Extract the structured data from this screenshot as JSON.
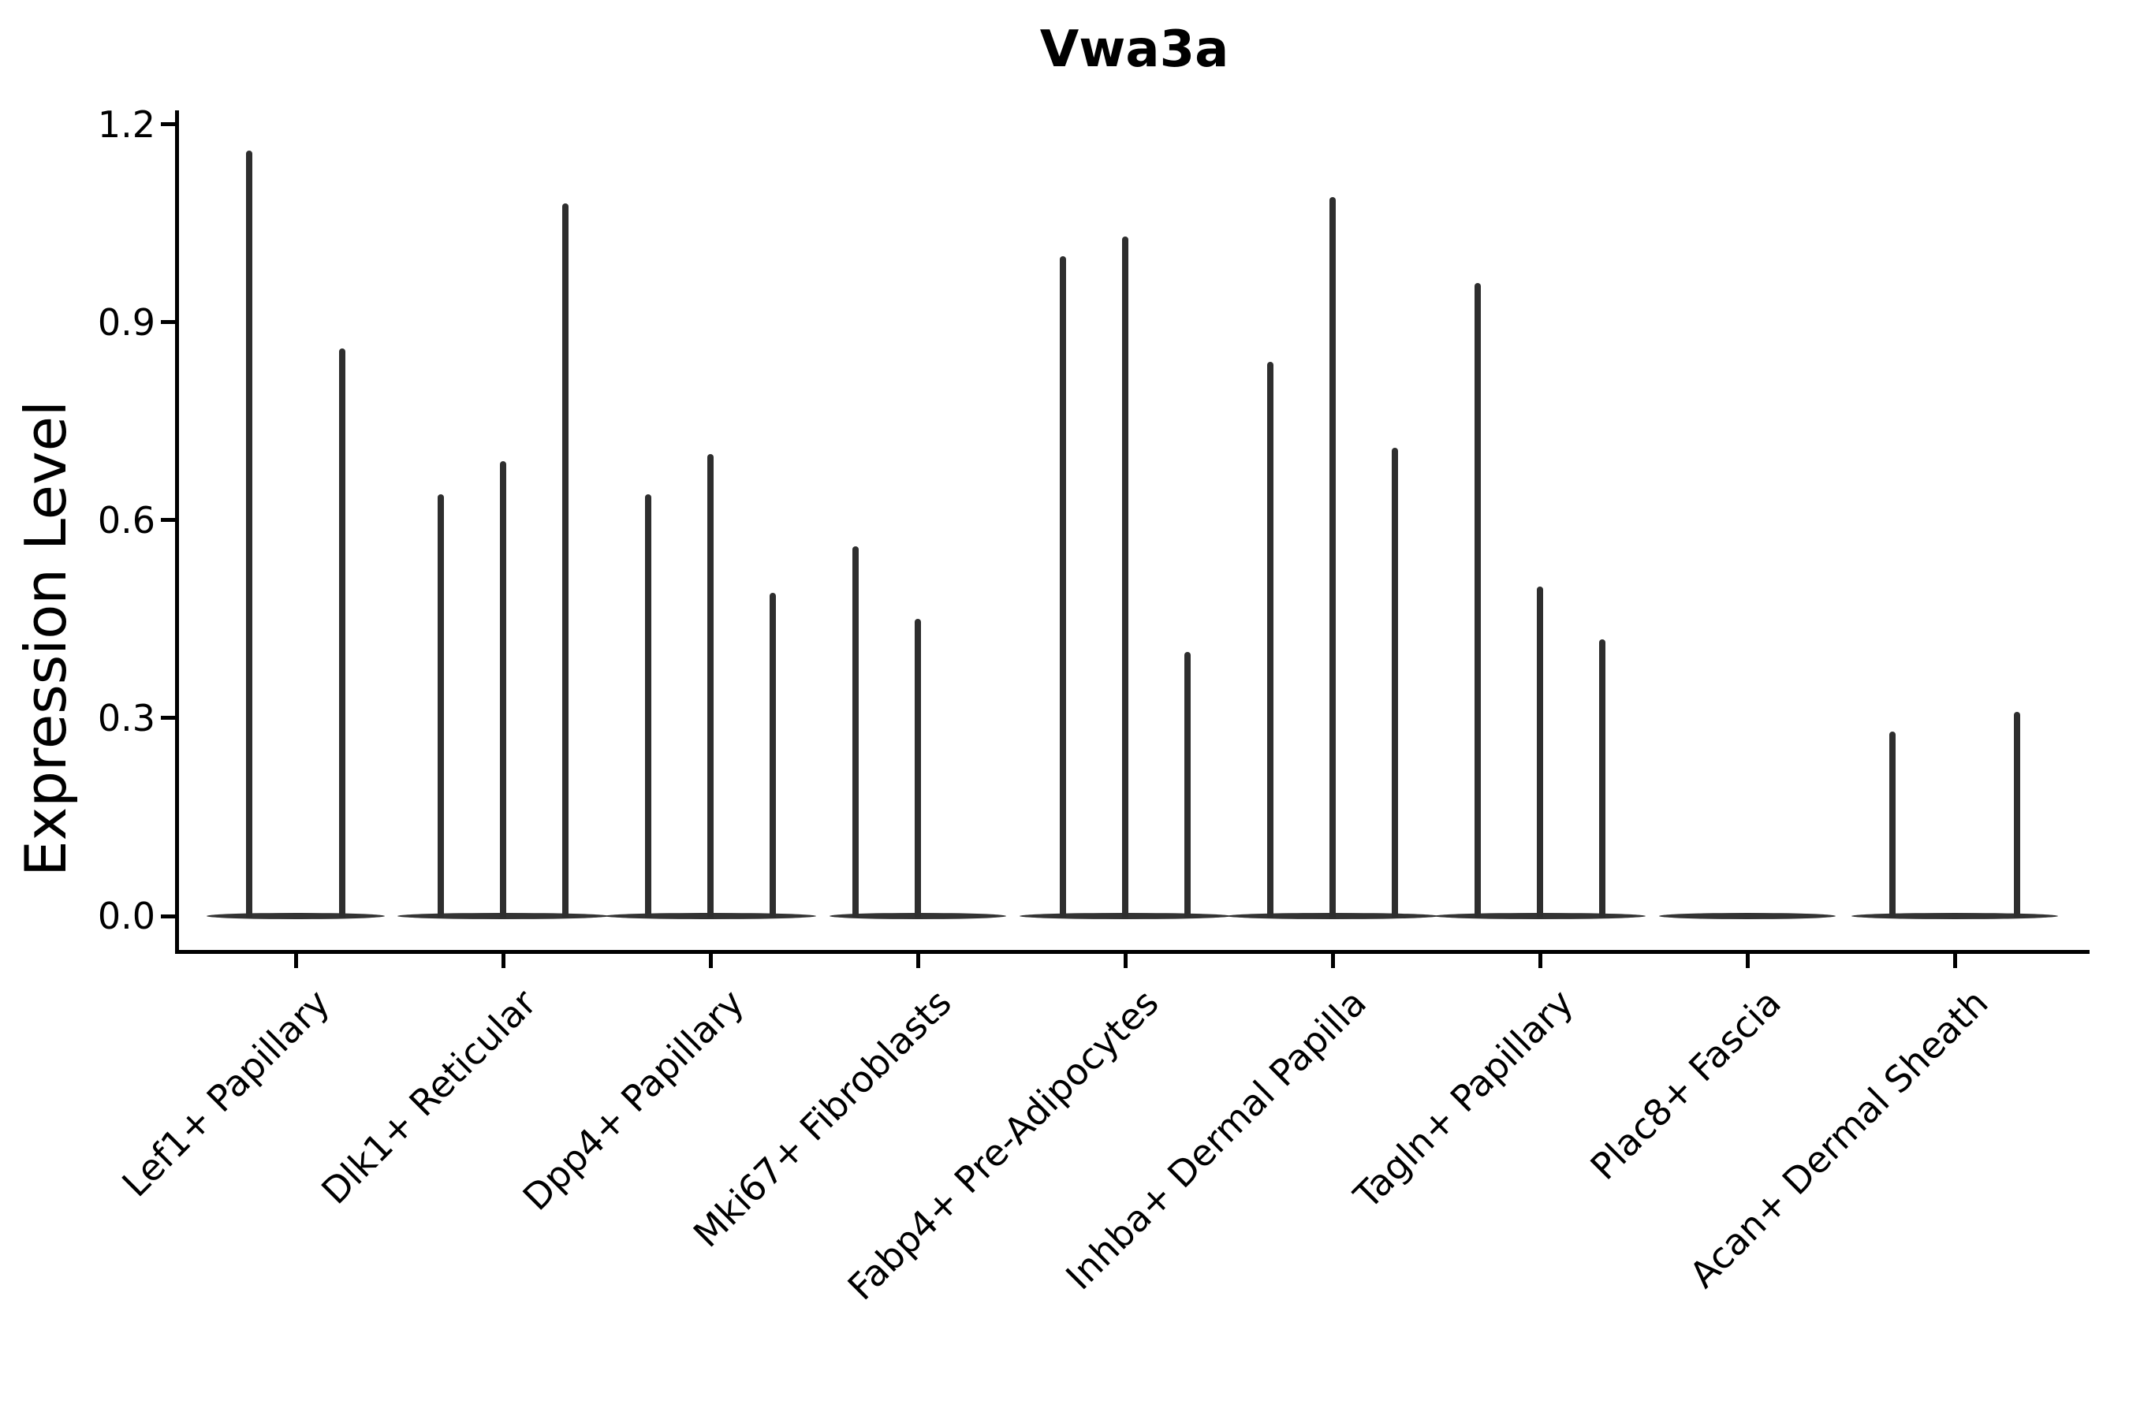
{
  "chart_data": {
    "type": "violin",
    "title": "Vwa3a",
    "ylabel": "Expression Level",
    "xlabel": "",
    "ylim": [
      -0.06,
      1.22
    ],
    "yticks": [
      0.0,
      0.3,
      0.6,
      0.9,
      1.2
    ],
    "ytick_labels": [
      "0.0",
      "0.3",
      "0.6",
      "0.9",
      "1.2"
    ],
    "grid": false,
    "legend": "none",
    "categories": [
      "Lef1+ Papillary",
      "Dlk1+ Reticular",
      "Dpp4+ Papillary",
      "Mki67+ Fibroblasts",
      "Fabp4+ Pre-Adipocytes",
      "Inhba+ Dermal Papilla",
      "Tagln+ Papillary",
      "Plac8+ Fascia",
      "Acan+ Dermal Sheath"
    ],
    "description": "Thin violins collapsed at expression 0 with narrow spikes reaching the maximum expression value; up to 3 violins per category.",
    "groups": [
      {
        "label": "Lef1+ Papillary",
        "baseline_halfwidth": 113,
        "violins": [
          {
            "offset": -59,
            "max": 1.16
          },
          {
            "offset": 59,
            "max": 0.86
          }
        ]
      },
      {
        "label": "Dlk1+ Reticular",
        "baseline_halfwidth": 134,
        "violins": [
          {
            "offset": -79,
            "max": 0.64
          },
          {
            "offset": 0,
            "max": 0.69
          },
          {
            "offset": 79,
            "max": 1.08
          }
        ]
      },
      {
        "label": "Dpp4+ Papillary",
        "baseline_halfwidth": 134,
        "violins": [
          {
            "offset": -79,
            "max": 0.64
          },
          {
            "offset": 0,
            "max": 0.7
          },
          {
            "offset": 79,
            "max": 0.49
          }
        ]
      },
      {
        "label": "Mki67+ Fibroblasts",
        "baseline_halfwidth": 112,
        "violins": [
          {
            "offset": -79,
            "max": 0.56
          },
          {
            "offset": 0,
            "max": 0.45
          }
        ]
      },
      {
        "label": "Fabp4+ Pre-Adipocytes",
        "baseline_halfwidth": 134,
        "violins": [
          {
            "offset": -79,
            "max": 1.0
          },
          {
            "offset": 0,
            "max": 1.03
          },
          {
            "offset": 79,
            "max": 0.4
          }
        ]
      },
      {
        "label": "Inhba+ Dermal Papilla",
        "baseline_halfwidth": 134,
        "violins": [
          {
            "offset": -79,
            "max": 0.84
          },
          {
            "offset": 0,
            "max": 1.09
          },
          {
            "offset": 79,
            "max": 0.71
          }
        ]
      },
      {
        "label": "Tagln+ Papillary",
        "baseline_halfwidth": 134,
        "violins": [
          {
            "offset": -79,
            "max": 0.96
          },
          {
            "offset": 0,
            "max": 0.5
          },
          {
            "offset": 79,
            "max": 0.42
          }
        ]
      },
      {
        "label": "Plac8+ Fascia",
        "baseline_halfwidth": 112,
        "violins": []
      },
      {
        "label": "Acan+ Dermal Sheath",
        "baseline_halfwidth": 131,
        "violins": [
          {
            "offset": -79,
            "max": 0.28
          },
          {
            "offset": 79,
            "max": 0.31
          }
        ]
      }
    ],
    "colors": {
      "violin": "#2e2e2e",
      "axis": "#000000",
      "text": "#000000",
      "background": "#ffffff"
    }
  }
}
